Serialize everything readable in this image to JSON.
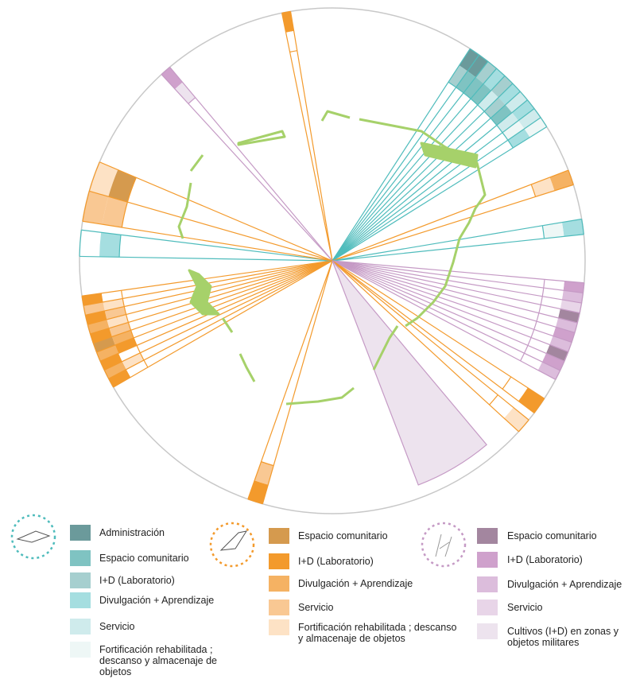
{
  "legend": [
    {
      "items": [
        {
          "label": "Administración",
          "color": "#6b9a9b"
        },
        {
          "label": "Espacio comunitario",
          "color": "#7fc3c2"
        },
        {
          "label": "I+D (Laboratorio)",
          "color": "#a6cfcf"
        },
        {
          "label": "Divulgación + Aprendizaje",
          "color": "#a5dee0"
        },
        {
          "label": "Servicio",
          "color": "#cfebec"
        },
        {
          "label": "Fortificación rehabilitada ; descanso y almacenaje de objetos",
          "color": "#eef7f6"
        }
      ]
    },
    {
      "items": [
        {
          "label": "Espacio comunitario",
          "color": "#d59a4e"
        },
        {
          "label": "I+D (Laboratorio)",
          "color": "#f39a2c"
        },
        {
          "label": "Divulgación + Aprendizaje",
          "color": "#f5b263"
        },
        {
          "label": "Servicio",
          "color": "#f9c893"
        },
        {
          "label": "Fortificación rehabilitada ; descanso y almacenaje de objetos",
          "color": "#fde2c5"
        }
      ]
    },
    {
      "items": [
        {
          "label": "Espacio comunitario",
          "color": "#a3869f"
        },
        {
          "label": "I+D (Laboratorio)",
          "color": "#cfa1cc"
        },
        {
          "label": "Divulgación + Aprendizaje",
          "color": "#dcbddc"
        },
        {
          "label": "Servicio",
          "color": "#e8d5e8"
        },
        {
          "label": "Cultivos (I+D) en zonas y objetos militares",
          "color": "#ede3ee"
        }
      ]
    }
  ]
}
